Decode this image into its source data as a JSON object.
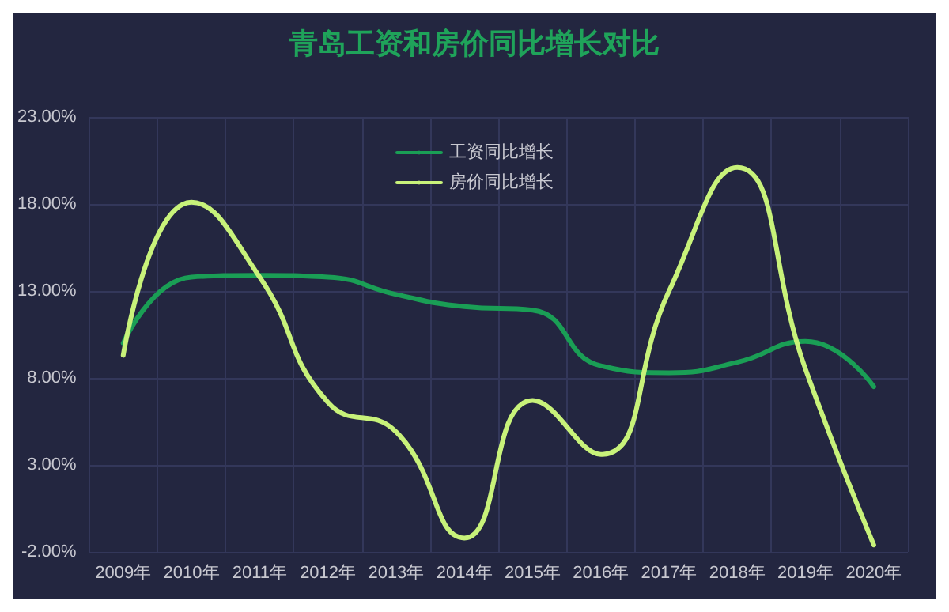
{
  "chart_data": {
    "type": "line",
    "title": "青岛工资和房价同比增长对比",
    "categories": [
      "2009年",
      "2010年",
      "2011年",
      "2012年",
      "2013年",
      "2014年",
      "2015年",
      "2016年",
      "2017年",
      "2018年",
      "2019年",
      "2020年"
    ],
    "series": [
      {
        "name": "工资同比增长",
        "color": "#1a9e55",
        "values": [
          10.0,
          13.8,
          13.9,
          13.8,
          12.8,
          12.1,
          11.9,
          8.7,
          8.3,
          8.9,
          10.1,
          7.5
        ]
      },
      {
        "name": "房价同比增长",
        "color": "#c8f27a",
        "values": [
          9.3,
          18.1,
          13.8,
          6.6,
          4.9,
          -1.2,
          6.7,
          3.6,
          13.0,
          20.1,
          8.5,
          -1.6
        ]
      }
    ],
    "ylim": [
      -2,
      23
    ],
    "yticks": [
      {
        "value": -2,
        "label": "-2.00%"
      },
      {
        "value": 3,
        "label": "3.00%"
      },
      {
        "value": 8,
        "label": "8.00%"
      },
      {
        "value": 13,
        "label": "13.00%"
      },
      {
        "value": 18,
        "label": "18.00%"
      },
      {
        "value": 23,
        "label": "23.00%"
      }
    ],
    "grid": true,
    "legend": "top",
    "marker": "none",
    "line_style": "solid"
  }
}
